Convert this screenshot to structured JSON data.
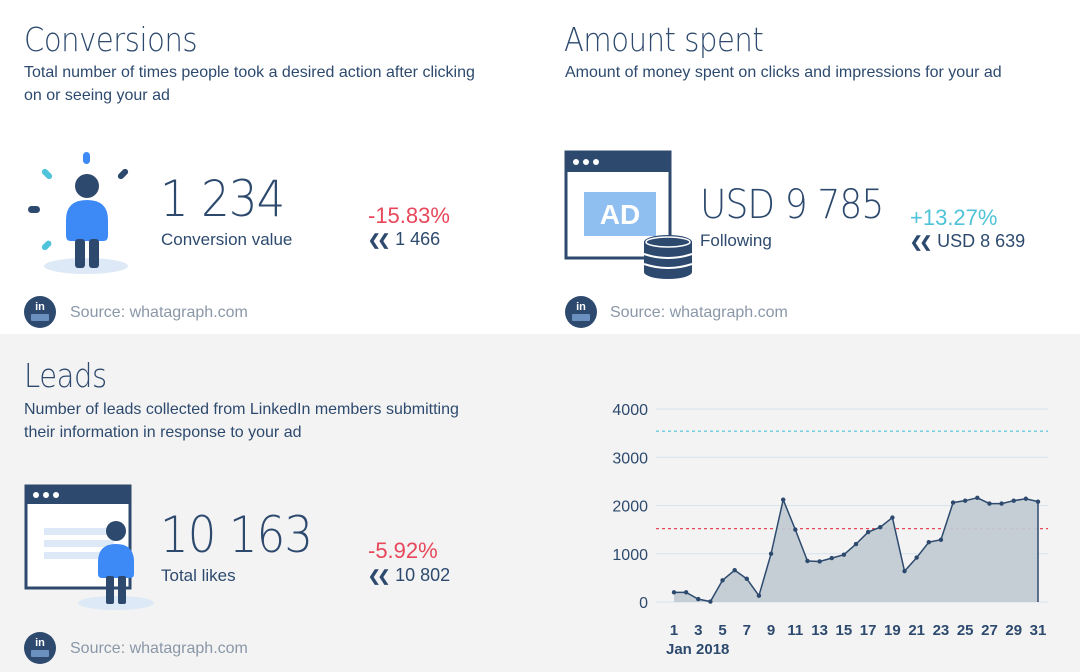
{
  "conversions": {
    "title": "Conversions",
    "description": "Total number of times people took a desired action after clicking on or seeing your ad",
    "value": "1 234",
    "value_label": "Conversion value",
    "change": "-15.83%",
    "previous": "1 466",
    "source": "Source: whatagraph.com"
  },
  "amount_spent": {
    "title": "Amount spent",
    "description": "Amount of money spent on clicks and impressions for your ad",
    "value": "USD 9 785",
    "value_label": "Following",
    "change": "+13.27%",
    "previous": "USD 8 639",
    "source": "Source: whatagraph.com",
    "ad_text": "AD"
  },
  "leads": {
    "title": "Leads",
    "description": "Number of leads collected from LinkedIn members submitting their information in response to your ad",
    "value": "10 163",
    "value_label": "Total likes",
    "change": "-5.92%",
    "previous": "10 802",
    "source": "Source: whatagraph.com"
  },
  "badge": {
    "text": "in"
  },
  "colors": {
    "accent": "#2d4a6e",
    "negative": "#e8475b",
    "positive": "#4fc3d9",
    "area": "#c2cad3"
  },
  "chart_data": {
    "type": "area",
    "x": [
      1,
      2,
      3,
      4,
      5,
      6,
      7,
      8,
      9,
      10,
      11,
      12,
      13,
      14,
      15,
      16,
      17,
      18,
      19,
      20,
      21,
      22,
      23,
      24,
      25,
      26,
      27,
      28,
      29,
      30,
      31
    ],
    "series": [
      {
        "values": [
          200,
          200,
          60,
          10,
          450,
          660,
          480,
          130,
          1000,
          2120,
          1500,
          850,
          840,
          910,
          980,
          1200,
          1450,
          1550,
          1750,
          640,
          920,
          1240,
          1290,
          2060,
          2100,
          2160,
          2040,
          2040,
          2100,
          2140,
          2080
        ]
      }
    ],
    "reference_lines": [
      {
        "color": "#4fc3d9",
        "style": "dashed",
        "value": 3540
      },
      {
        "color": "#e8475b",
        "style": "dashed",
        "value": 1520
      }
    ],
    "y_ticks": [
      0,
      1000,
      2000,
      3000,
      4000
    ],
    "x_ticks": [
      "1",
      "3",
      "5",
      "7",
      "9",
      "11",
      "13",
      "15",
      "17",
      "19",
      "21",
      "23",
      "25",
      "27",
      "29",
      "31"
    ],
    "xlabel": "Jan 2018",
    "ylim": [
      0,
      4000
    ],
    "grid": true
  }
}
